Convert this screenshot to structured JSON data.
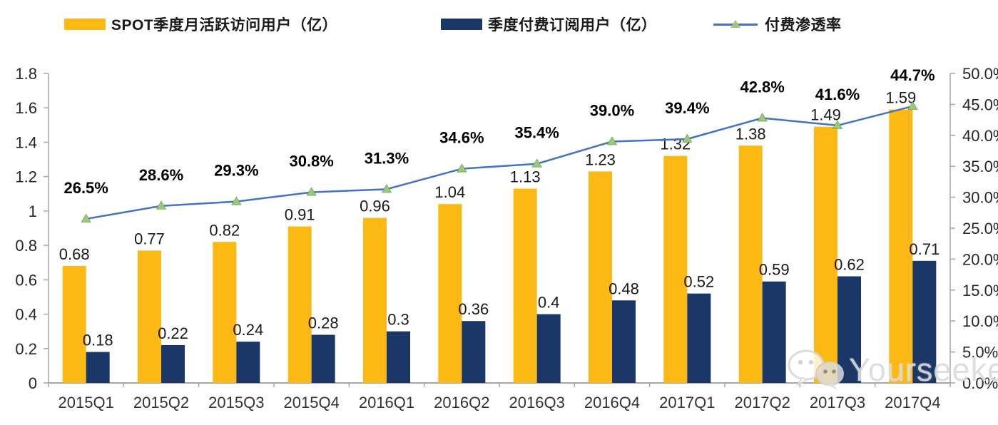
{
  "page": {
    "background": "#FFFFFF"
  },
  "legend": {
    "position": "top",
    "items": [
      {
        "label": "SPOT季度月活跃访问用户（亿）",
        "type": "bar",
        "swatch_color": "#FCB813"
      },
      {
        "label": "季度付费订阅用户（亿）",
        "type": "bar",
        "swatch_color": "#1A3768"
      },
      {
        "label": "付费渗透率",
        "type": "line",
        "line_color": "#4472C4",
        "marker_color": "#9CC87A"
      }
    ]
  },
  "watermark": {
    "text": "Yourseeker",
    "icon": "wechat-icon",
    "color": "#DCDCDC"
  },
  "chart_data": {
    "type": "combo: grouped bar (left axis) + line with triangle markers (right axis)",
    "categories": [
      "2015Q1",
      "2015Q2",
      "2015Q3",
      "2015Q4",
      "2016Q1",
      "2016Q2",
      "2016Q3",
      "2016Q4",
      "2017Q1",
      "2017Q2",
      "2017Q3",
      "2017Q4"
    ],
    "series": [
      {
        "name": "SPOT季度月活跃访问用户（亿）",
        "type": "bar",
        "axis": "left",
        "color": "#FCB813",
        "values": [
          0.68,
          0.77,
          0.82,
          0.91,
          0.96,
          1.04,
          1.13,
          1.23,
          1.32,
          1.38,
          1.49,
          1.59
        ],
        "labels": [
          "0.68",
          "0.77",
          "0.82",
          "0.91",
          "0.96",
          "1.04",
          "1.13",
          "1.23",
          "1.32",
          "1.38",
          "1.49",
          "1.59"
        ]
      },
      {
        "name": "季度付费订阅用户（亿）",
        "type": "bar",
        "axis": "left",
        "color": "#1A3768",
        "values": [
          0.18,
          0.22,
          0.24,
          0.28,
          0.3,
          0.36,
          0.4,
          0.48,
          0.52,
          0.59,
          0.62,
          0.71
        ],
        "labels": [
          "0.18",
          "0.22",
          "0.24",
          "0.28",
          "0.3",
          "0.36",
          "0.4",
          "0.48",
          "0.52",
          "0.59",
          "0.62",
          "0.71"
        ]
      },
      {
        "name": "付费渗透率",
        "type": "line",
        "axis": "right",
        "color": "#4472C4",
        "marker": "triangle",
        "marker_color": "#9CC87A",
        "marker_edge": "#6FA84F",
        "values": [
          26.5,
          28.6,
          29.3,
          30.8,
          31.3,
          34.6,
          35.4,
          39.0,
          39.4,
          42.8,
          41.6,
          44.7
        ],
        "labels": [
          "26.5%",
          "28.6%",
          "29.3%",
          "30.8%",
          "31.3%",
          "34.6%",
          "35.4%",
          "39.0%",
          "39.4%",
          "42.8%",
          "41.6%",
          "44.7%"
        ]
      }
    ],
    "left_axis": {
      "min": 0,
      "max": 1.8,
      "step": 0.2,
      "tick_labels": [
        "0",
        "0.2",
        "0.4",
        "0.6",
        "0.8",
        "1",
        "1.2",
        "1.4",
        "1.6",
        "1.8"
      ]
    },
    "right_axis": {
      "min": 0,
      "max": 50,
      "step": 5,
      "tick_labels": [
        "0.0%",
        "5.0%",
        "10.0%",
        "15.0%",
        "20.0%",
        "25.0%",
        "30.0%",
        "35.0%",
        "40.0%",
        "45.0%",
        "50.0%"
      ]
    },
    "grid": false,
    "legend_position": "top",
    "colors": {
      "axis": "#A6A6A6",
      "tick_text": "#262626",
      "value_label": "#1a1a1a",
      "percent_label": "#000000"
    }
  }
}
